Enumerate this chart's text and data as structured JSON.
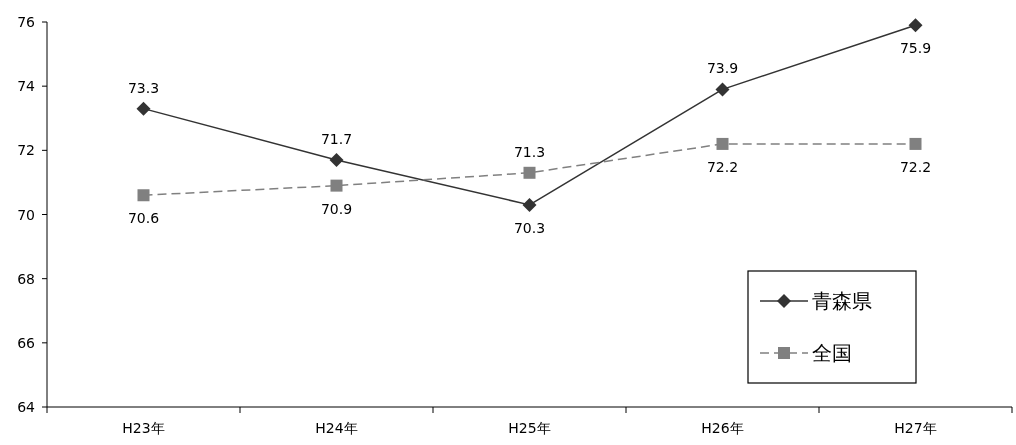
{
  "chart_data": {
    "type": "line",
    "categories": [
      "H23年",
      "H24年",
      "H25年",
      "H26年",
      "H27年"
    ],
    "series": [
      {
        "name": "青森県",
        "color": "#333333",
        "marker": "diamond",
        "line_style": "solid",
        "values": [
          73.3,
          71.7,
          70.3,
          73.9,
          75.9
        ]
      },
      {
        "name": "全国",
        "color": "#808080",
        "marker": "square",
        "line_style": "dashed",
        "values": [
          70.6,
          70.9,
          71.3,
          72.2,
          72.2
        ]
      }
    ],
    "ylim": [
      64,
      76
    ],
    "yticks": [
      64,
      66,
      68,
      70,
      72,
      74,
      76
    ],
    "data_labels": true,
    "legend": "bottom right",
    "grid": false
  }
}
